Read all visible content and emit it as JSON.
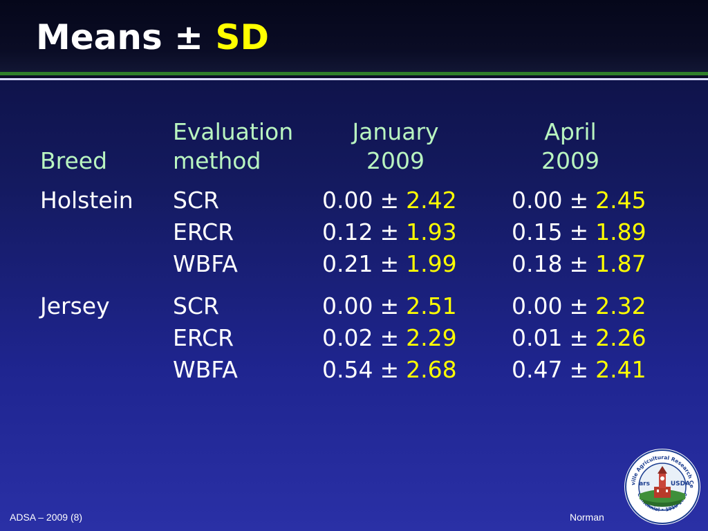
{
  "slide": {
    "title_main": "Means ± ",
    "title_highlight": "SD",
    "footer_left": "ADSA – 2009 (8)",
    "footer_right": "Norman",
    "colors": {
      "background": "#1f2590",
      "header_text": "#b9f5c0",
      "highlight": "#ffff00",
      "rule": "#2f7f2a"
    },
    "logo": {
      "name": "barc-usda-centennial-seal",
      "ring_top": "Beltsville Agricultural Research Center",
      "ring_bottom": "Centennial • 1910-2010",
      "left_mark": "ars",
      "right_mark": "USDA"
    }
  },
  "table": {
    "headers": {
      "breed": "Breed",
      "method_line1": "Evaluation",
      "method_line2": "method",
      "jan_line1": "January",
      "jan_line2": "2009",
      "apr_line1": "April",
      "apr_line2": "2009"
    },
    "groups": [
      {
        "breed": "Holstein",
        "rows": [
          {
            "method": "SCR",
            "jan_mean": "0.00",
            "jan_sd": "2.42",
            "apr_mean": "0.00",
            "apr_sd": "2.45"
          },
          {
            "method": "ERCR",
            "jan_mean": "0.12",
            "jan_sd": "1.93",
            "apr_mean": "0.15",
            "apr_sd": "1.89"
          },
          {
            "method": "WBFA",
            "jan_mean": "0.21",
            "jan_sd": "1.99",
            "apr_mean": "0.18",
            "apr_sd": "1.87"
          }
        ]
      },
      {
        "breed": "Jersey",
        "rows": [
          {
            "method": "SCR",
            "jan_mean": "0.00",
            "jan_sd": "2.51",
            "apr_mean": "0.00",
            "apr_sd": "2.32"
          },
          {
            "method": "ERCR",
            "jan_mean": "0.02",
            "jan_sd": "2.29",
            "apr_mean": "0.01",
            "apr_sd": "2.26"
          },
          {
            "method": "WBFA",
            "jan_mean": "0.54",
            "jan_sd": "2.68",
            "apr_mean": "0.47",
            "apr_sd": "2.41"
          }
        ]
      }
    ],
    "pm_symbol": "±"
  }
}
